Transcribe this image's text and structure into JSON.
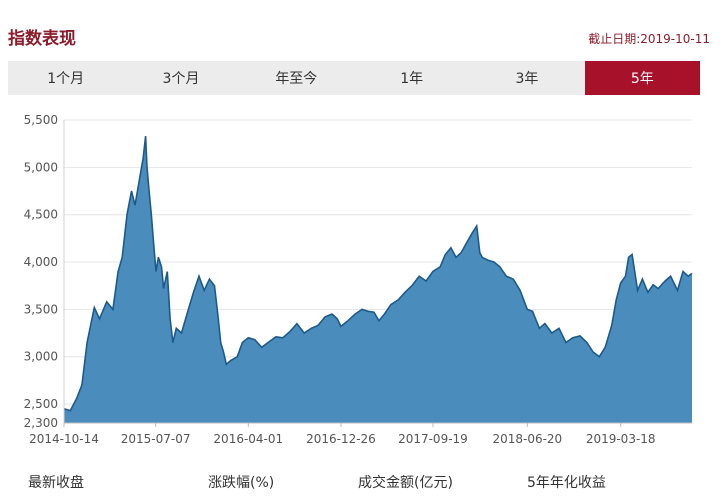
{
  "header": {
    "title": "指数表现",
    "date_label": "截止日期:2019-10-11"
  },
  "tabs": [
    {
      "label": "1个月",
      "active": false
    },
    {
      "label": "3个月",
      "active": false
    },
    {
      "label": "年至今",
      "active": false
    },
    {
      "label": "1年",
      "active": false
    },
    {
      "label": "3年",
      "active": false
    },
    {
      "label": "5年",
      "active": true
    }
  ],
  "colors": {
    "area_fill": "#4a8dbd",
    "area_line": "#1d5a8a",
    "accent": "#a8112a"
  },
  "footer": {
    "labels": [
      "最新收盘",
      "涨跌幅(%)",
      "成交金额(亿元)",
      "5年年化收益"
    ]
  },
  "chart_data": {
    "type": "area",
    "x": [
      "2014-10-14",
      "2014-11-01",
      "2014-11-20",
      "2014-12-05",
      "2014-12-20",
      "2015-01-10",
      "2015-01-25",
      "2015-02-15",
      "2015-03-05",
      "2015-03-20",
      "2015-04-01",
      "2015-04-15",
      "2015-04-28",
      "2015-05-08",
      "2015-05-20",
      "2015-06-01",
      "2015-06-08",
      "2015-06-12",
      "2015-06-18",
      "2015-06-25",
      "2015-07-01",
      "2015-07-08",
      "2015-07-15",
      "2015-07-24",
      "2015-07-30",
      "2015-08-10",
      "2015-08-18",
      "2015-08-26",
      "2015-09-05",
      "2015-09-20",
      "2015-10-10",
      "2015-10-25",
      "2015-11-10",
      "2015-11-25",
      "2015-12-10",
      "2015-12-25",
      "2016-01-05",
      "2016-01-12",
      "2016-01-20",
      "2016-01-28",
      "2016-02-10",
      "2016-02-29",
      "2016-03-15",
      "2016-04-01",
      "2016-04-20",
      "2016-05-10",
      "2016-06-01",
      "2016-06-20",
      "2016-07-10",
      "2016-08-01",
      "2016-08-20",
      "2016-09-10",
      "2016-10-01",
      "2016-10-20",
      "2016-11-10",
      "2016-11-30",
      "2016-12-15",
      "2016-12-26",
      "2017-01-15",
      "2017-02-05",
      "2017-02-25",
      "2017-03-15",
      "2017-04-01",
      "2017-04-15",
      "2017-05-01",
      "2017-05-20",
      "2017-06-10",
      "2017-06-30",
      "2017-07-20",
      "2017-08-10",
      "2017-08-30",
      "2017-09-19",
      "2017-10-10",
      "2017-10-25",
      "2017-11-10",
      "2017-11-25",
      "2017-12-10",
      "2017-12-25",
      "2018-01-10",
      "2018-01-24",
      "2018-02-02",
      "2018-02-09",
      "2018-02-25",
      "2018-03-15",
      "2018-04-01",
      "2018-04-20",
      "2018-05-10",
      "2018-05-30",
      "2018-06-20",
      "2018-07-05",
      "2018-07-25",
      "2018-08-10",
      "2018-08-30",
      "2018-09-20",
      "2018-10-10",
      "2018-10-30",
      "2018-11-20",
      "2018-12-10",
      "2018-12-28",
      "2019-01-15",
      "2019-02-01",
      "2019-02-20",
      "2019-03-05",
      "2019-03-18",
      "2019-04-01",
      "2019-04-10",
      "2019-04-20",
      "2019-05-06",
      "2019-05-20",
      "2019-06-05",
      "2019-06-20",
      "2019-07-05",
      "2019-07-25",
      "2019-08-10",
      "2019-08-30",
      "2019-09-15",
      "2019-09-30",
      "2019-10-11"
    ],
    "y": [
      2450,
      2430,
      2560,
      2700,
      3150,
      3520,
      3400,
      3580,
      3500,
      3900,
      4050,
      4500,
      4750,
      4600,
      4850,
      5100,
      5330,
      5000,
      4750,
      4480,
      4200,
      3900,
      4050,
      3950,
      3720,
      3900,
      3400,
      3150,
      3300,
      3250,
      3500,
      3680,
      3850,
      3700,
      3820,
      3750,
      3400,
      3150,
      3050,
      2920,
      2960,
      3000,
      3150,
      3200,
      3180,
      3100,
      3160,
      3210,
      3200,
      3270,
      3350,
      3250,
      3300,
      3330,
      3420,
      3450,
      3400,
      3320,
      3380,
      3450,
      3500,
      3480,
      3470,
      3380,
      3450,
      3550,
      3600,
      3680,
      3750,
      3850,
      3800,
      3900,
      3950,
      4080,
      4150,
      4050,
      4100,
      4200,
      4300,
      4380,
      4100,
      4050,
      4020,
      4000,
      3950,
      3850,
      3820,
      3700,
      3500,
      3480,
      3300,
      3350,
      3250,
      3300,
      3150,
      3200,
      3220,
      3150,
      3050,
      3000,
      3100,
      3330,
      3600,
      3780,
      3850,
      4050,
      4080,
      3700,
      3820,
      3680,
      3760,
      3720,
      3800,
      3850,
      3700,
      3900,
      3850,
      3880
    ],
    "ylim": [
      2300,
      5500
    ],
    "yticks": [
      2300,
      2500,
      3000,
      3500,
      4000,
      4500,
      5000,
      5500
    ],
    "ytick_labels": [
      "2,300",
      "2,500",
      "3,000",
      "3,500",
      "4,000",
      "4,500",
      "5,000",
      "5,500"
    ],
    "xticks": [
      "2014-10-14",
      "2015-07-07",
      "2016-04-01",
      "2016-12-26",
      "2017-09-19",
      "2018-06-20",
      "2019-03-18"
    ],
    "grid": true,
    "title": "",
    "xlabel": "",
    "ylabel": ""
  }
}
